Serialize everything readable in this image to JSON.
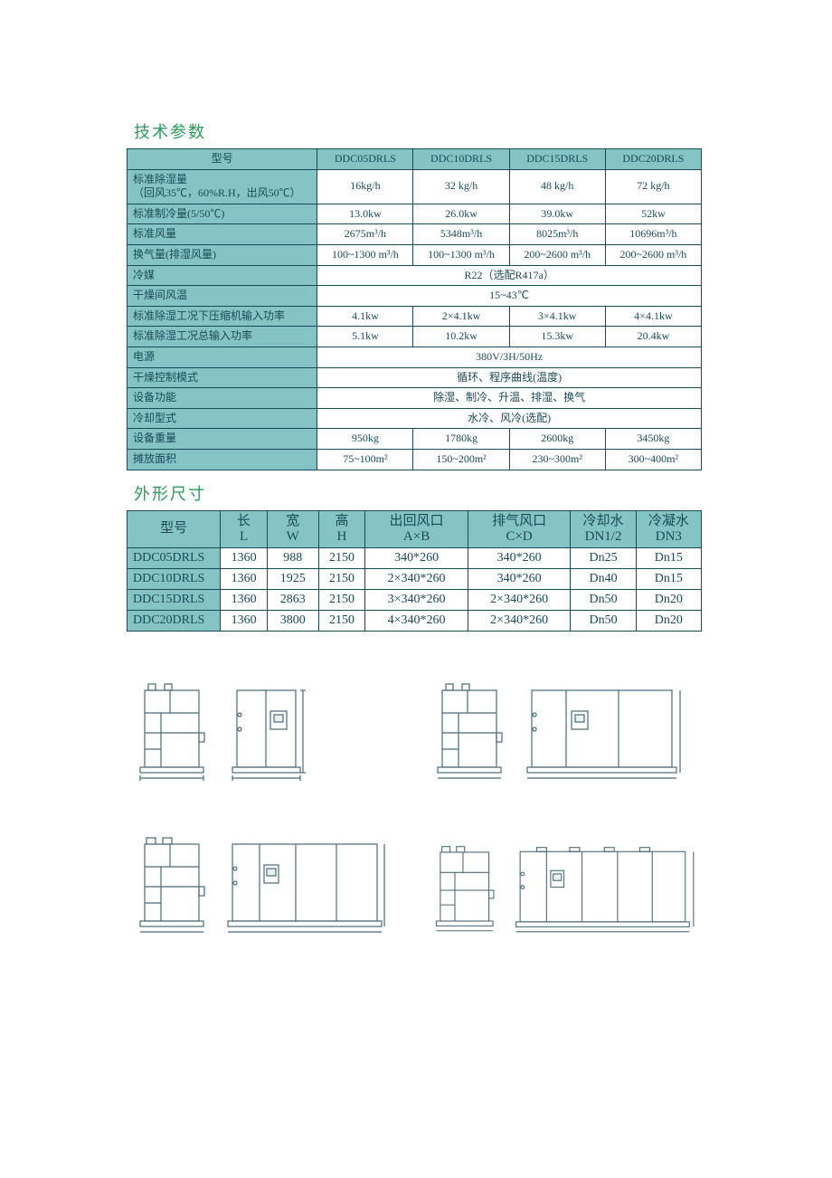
{
  "section1": {
    "title": "技术参数",
    "header_label": "型号",
    "models": [
      "DDC05DRLS",
      "DDC10DRLS",
      "DDC15DRLS",
      "DDC20DRLS"
    ],
    "rows": [
      {
        "label": "标准除湿量\n（回风35℃，60%R.H，出风50℃）",
        "vals": [
          "16kg/h",
          "32 kg/h",
          "48 kg/h",
          "72 kg/h"
        ]
      },
      {
        "label": "标准制冷量(5/50℃)",
        "vals": [
          "13.0kw",
          "26.0kw",
          "39.0kw",
          "52kw"
        ]
      },
      {
        "label": "标准风量",
        "vals": [
          "2675m³/h",
          "5348m³/h",
          "8025m³/h",
          "10696m³/h"
        ]
      },
      {
        "label": "换气量(排湿风量)",
        "vals": [
          "100~1300 m³/h",
          "100~1300 m³/h",
          "200~2600 m³/h",
          "200~2600 m³/h"
        ]
      },
      {
        "label": "冷媒",
        "span": "R22（选配R417a）"
      },
      {
        "label": "干燥间风温",
        "span": "15~43℃"
      },
      {
        "label": "标准除湿工况下压缩机输入功率",
        "vals": [
          "4.1kw",
          "2×4.1kw",
          "3×4.1kw",
          "4×4.1kw"
        ]
      },
      {
        "label": "标准除湿工况总输入功率",
        "vals": [
          "5.1kw",
          "10.2kw",
          "15.3kw",
          "20.4kw"
        ]
      },
      {
        "label": "电源",
        "span": "380V/3H/50Hz"
      },
      {
        "label": "干燥控制模式",
        "span": "循环、程序曲线(温度)"
      },
      {
        "label": "设备功能",
        "span": "除湿、制冷、升温、排湿、换气"
      },
      {
        "label": "冷却型式",
        "span": "水冷、风冷(选配)"
      },
      {
        "label": "设备重量",
        "vals": [
          "950kg",
          "1780kg",
          "2600kg",
          "3450kg"
        ]
      },
      {
        "label": "摊放面积",
        "vals": [
          "75~100m²",
          "150~200m²",
          "230~300m²",
          "300~400m²"
        ]
      }
    ]
  },
  "section2": {
    "title": "外形尺寸",
    "headers": [
      {
        "top": "型号",
        "bot": ""
      },
      {
        "top": "长",
        "bot": "L"
      },
      {
        "top": "宽",
        "bot": "W"
      },
      {
        "top": "高",
        "bot": "H"
      },
      {
        "top": "出回风口",
        "bot": "A×B"
      },
      {
        "top": "排气风口",
        "bot": "C×D"
      },
      {
        "top": "冷却水",
        "bot": "DN1/2"
      },
      {
        "top": "冷凝水",
        "bot": "DN3"
      }
    ],
    "rows": [
      [
        "DDC05DRLS",
        "1360",
        "988",
        "2150",
        "340*260",
        "340*260",
        "Dn25",
        "Dn15"
      ],
      [
        "DDC10DRLS",
        "1360",
        "1925",
        "2150",
        "2×340*260",
        "340*260",
        "Dn40",
        "Dn15"
      ],
      [
        "DDC15DRLS",
        "1360",
        "2863",
        "2150",
        "3×340*260",
        "2×340*260",
        "Dn50",
        "Dn20"
      ],
      [
        "DDC20DRLS",
        "1360",
        "3800",
        "2150",
        "4×340*260",
        "2×340*260",
        "Dn50",
        "Dn20"
      ]
    ]
  },
  "colors": {
    "heading": "#2a9b5c",
    "cell_bg": "#84c4c4",
    "border": "#1a4a5a",
    "text": "#1a4a5a",
    "diagram_stroke": "#4a6a7a"
  }
}
